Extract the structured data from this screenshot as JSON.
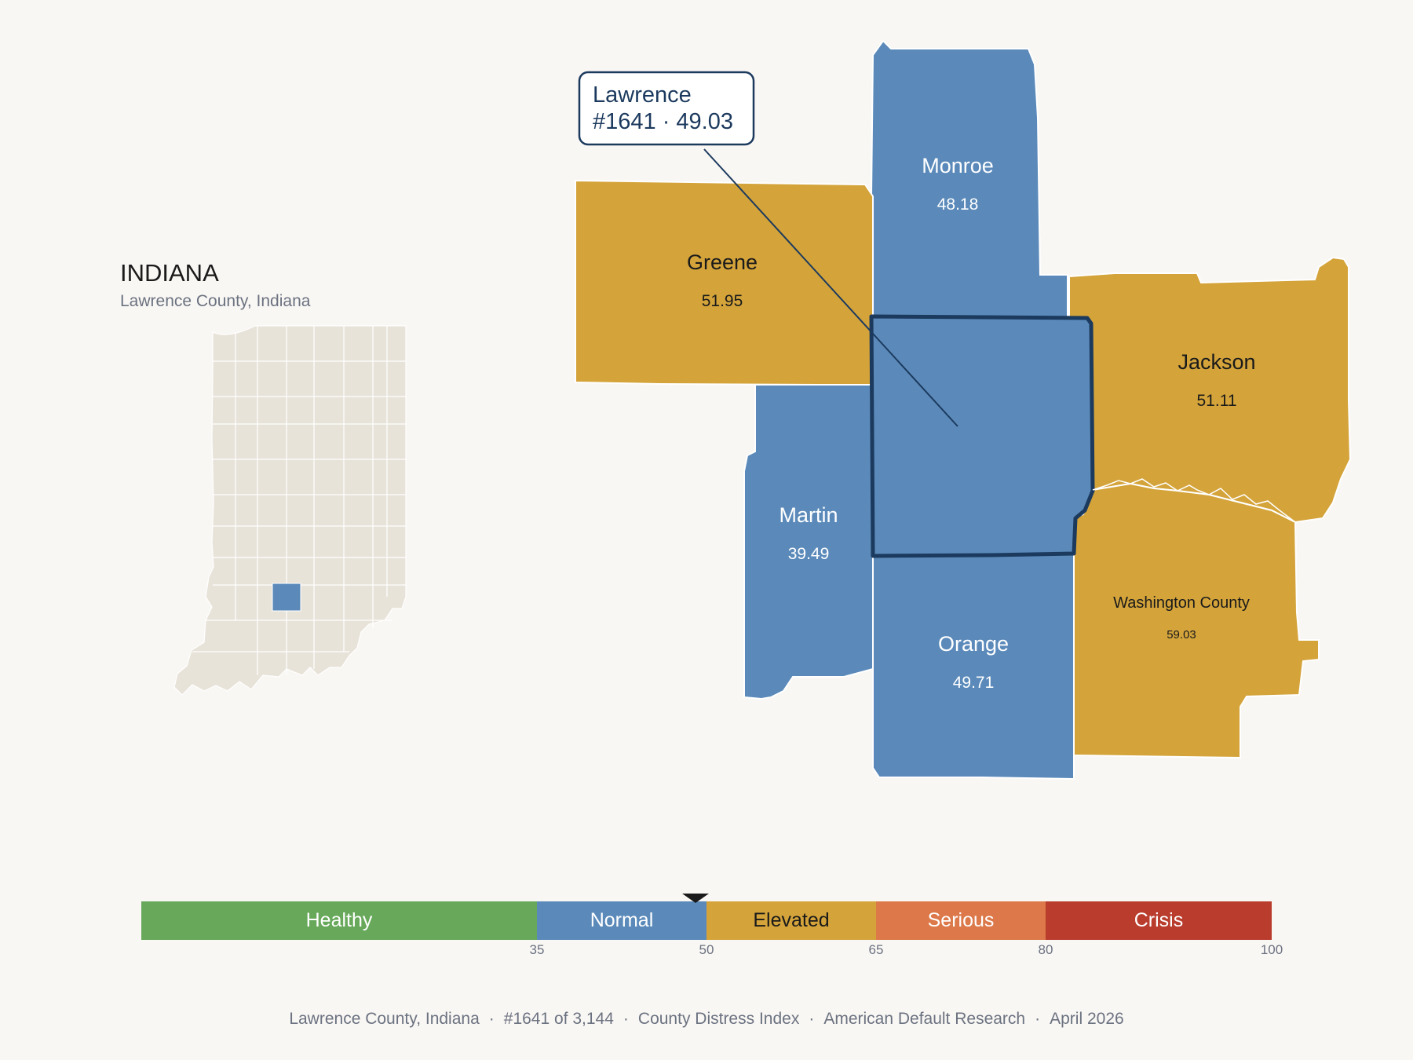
{
  "inset": {
    "title": "INDIANA",
    "subtitle": "Lawrence County, Indiana"
  },
  "callout": {
    "name": "Lawrence",
    "detail": "#1641 · 49.03"
  },
  "counties": [
    {
      "name": "Monroe",
      "value": "48.18",
      "category": "Normal"
    },
    {
      "name": "Greene",
      "value": "51.95",
      "category": "Elevated"
    },
    {
      "name": "Jackson",
      "value": "51.11",
      "category": "Elevated"
    },
    {
      "name": "Martin",
      "value": "39.49",
      "category": "Normal"
    },
    {
      "name": "Orange",
      "value": "49.71",
      "category": "Normal"
    },
    {
      "name": "Washington County",
      "value": "59.03",
      "category": "Elevated"
    },
    {
      "name": "Lawrence",
      "value": "49.03",
      "category": "Normal",
      "highlighted": true
    }
  ],
  "legend": {
    "bands": [
      {
        "label": "Healthy",
        "min": 0,
        "max": 35,
        "color": "#67a85a"
      },
      {
        "label": "Normal",
        "min": 35,
        "max": 50,
        "color": "#5b8aba"
      },
      {
        "label": "Elevated",
        "min": 50,
        "max": 65,
        "color": "#d4a43b"
      },
      {
        "label": "Serious",
        "min": 65,
        "max": 80,
        "color": "#dc7849"
      },
      {
        "label": "Crisis",
        "min": 80,
        "max": 100,
        "color": "#b93c2d"
      }
    ],
    "ticks": [
      "35",
      "50",
      "65",
      "80",
      "100"
    ],
    "marker_value": 49.03
  },
  "colors": {
    "normal": "#5b8aba",
    "elevated": "#d4a43b",
    "highlight_outline": "#1c3a5e",
    "inset_fill": "#e8e3d9",
    "inset_highlight": "#5b8aba"
  },
  "footer": {
    "items": [
      "Lawrence County, Indiana",
      "#1641 of 3,144",
      "County Distress Index",
      "American Default Research",
      "April 2026"
    ]
  }
}
